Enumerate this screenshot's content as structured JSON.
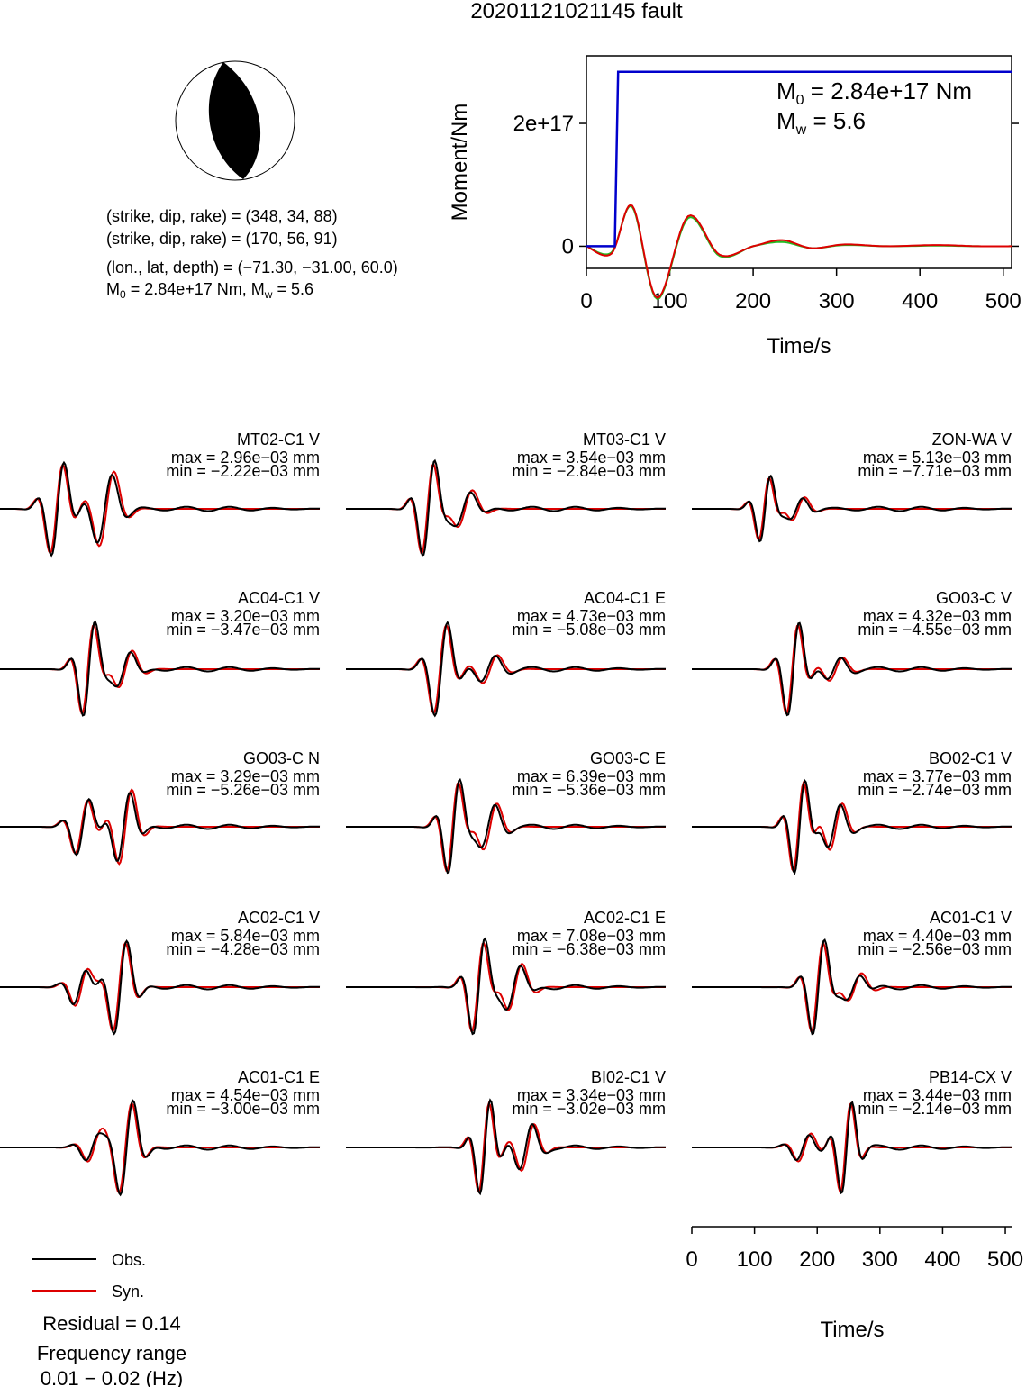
{
  "title": "20201121021145 fault",
  "mechanism": {
    "lines": [
      "(strike, dip, rake) = (348, 34, 88)",
      "(strike, dip, rake) = (170, 56, 91)",
      "(lon., lat, depth) = (−71.30, −31.00, 60.0)"
    ],
    "moment_line": {
      "m0": "M",
      "m0_sub": "0",
      "m0_rest": " = 2.84e+17 Nm, M",
      "mw_sub": "w",
      "mw_rest": " = 5.6"
    }
  },
  "stf": {
    "ylabel": "Moment/Nm",
    "xlabel": "Time/s",
    "yticks": [
      "2e+17",
      "0"
    ],
    "xticks": [
      "0",
      "100",
      "200",
      "300",
      "400",
      "500"
    ],
    "m0_text": {
      "a": "M",
      "sub": "0",
      "b": " = 2.84e+17 Nm"
    },
    "mw_text": {
      "a": "M",
      "sub": "w",
      "b": " = 5.6"
    },
    "colors": {
      "moment": "#0000cc",
      "red": "#dd0000",
      "green": "#22bb22"
    }
  },
  "waveforms": {
    "xlabel": "Time/s",
    "xticks": [
      "0",
      "100",
      "200",
      "300",
      "400",
      "500"
    ],
    "colors": {
      "obs": "#000000",
      "syn": "#dd0000"
    }
  },
  "legend": {
    "obs": "Obs.",
    "syn": "Syn.",
    "residual": "Residual = 0.14",
    "freq_label": "Frequency range",
    "freq_value": "0.01 − 0.02 (Hz)"
  },
  "chart_data": [
    {
      "type": "line",
      "title": "",
      "xlabel": "Time/s",
      "ylabel": "Moment/Nm",
      "xlim": [
        0,
        510
      ],
      "ylim": [
        -3.6e+16,
        3.1e+17
      ],
      "series": [
        {
          "color": "#0000cc",
          "x": [
            0,
            34,
            38,
            510
          ],
          "y": [
            0,
            0,
            2.84e+17,
            2.84e+17
          ]
        },
        {
          "color": "#dd0000",
          "x": [
            0,
            30,
            55,
            85,
            122,
            160,
            200,
            235,
            270,
            310,
            360,
            420,
            470,
            510
          ],
          "y": [
            0,
            -1.2e+16,
            6.6e+16,
            -8.4e+16,
            4.9e+16,
            -1.4e+16,
            0,
            1e+16,
            -3000000000000000.0,
            3000000000000000.0,
            0,
            2000000000000000.0,
            0,
            0
          ]
        },
        {
          "color": "#22bb22",
          "x": [
            0,
            30,
            55,
            85,
            122,
            160,
            200,
            235,
            270,
            310,
            360,
            420,
            470,
            510
          ],
          "y": [
            0,
            -1e+16,
            6.4e+16,
            -8.6e+16,
            4.6e+16,
            -1.6e+16,
            0,
            7000000000000000.0,
            -3000000000000000.0,
            2000000000000000.0,
            0,
            1000000000000000.0,
            0,
            0
          ]
        }
      ]
    },
    {
      "type": "line",
      "title": "waveforms",
      "xlabel": "Time/s",
      "xlim": [
        0,
        510
      ],
      "traces": [
        {
          "name": "MT02-C1 V",
          "max": "max = 2.96e−03 mm",
          "min": "min = −2.22e−03 mm",
          "pulses": [
            [
              90,
              1.0,
              12
            ],
            [
              170,
              0.8,
              14
            ]
          ]
        },
        {
          "name": "MT03-C1 V",
          "max": "max = 3.54e−03 mm",
          "min": "min = −2.84e−03 mm",
          "pulses": [
            [
              130,
              1.0,
              11
            ],
            [
              190,
              0.4,
              14
            ]
          ]
        },
        {
          "name": "ZON-WA V",
          "max": "max = 5.13e−03 mm",
          "min": "min = −7.71e−03 mm",
          "pulses": [
            [
              115,
              0.7,
              10
            ],
            [
              170,
              0.25,
              12
            ]
          ]
        },
        {
          "name": "AC04-C1 V",
          "max": "max = 3.20e−03 mm",
          "min": "min = −3.47e−03 mm",
          "pulses": [
            [
              140,
              1.0,
              11
            ],
            [
              200,
              0.4,
              13
            ]
          ]
        },
        {
          "name": "AC04-C1 E",
          "max": "max = 4.73e−03 mm",
          "min": "min = −5.08e−03 mm",
          "pulses": [
            [
              150,
              1.0,
              12
            ],
            [
              230,
              0.3,
              14
            ]
          ]
        },
        {
          "name": "GO03-C V",
          "max": "max = 4.32e−03 mm",
          "min": "min = −4.55e−03 mm",
          "pulses": [
            [
              160,
              1.0,
              11
            ],
            [
              230,
              0.25,
              13
            ]
          ]
        },
        {
          "name": "GO03-C N",
          "max": "max = 3.29e−03 mm",
          "min": "min = −5.26e−03 mm",
          "pulses": [
            [
              130,
              0.6,
              12
            ],
            [
              200,
              0.8,
              12
            ]
          ]
        },
        {
          "name": "GO03-C E",
          "max": "max = 6.39e−03 mm",
          "min": "min = −5.36e−03 mm",
          "pulses": [
            [
              170,
              1.0,
              11
            ],
            [
              230,
              0.5,
              13
            ]
          ]
        },
        {
          "name": "BO02-C1 V",
          "max": "max = 3.77e−03 mm",
          "min": "min = −2.74e−03 mm",
          "pulses": [
            [
              170,
              1.0,
              10
            ],
            [
              230,
              0.5,
              12
            ]
          ]
        },
        {
          "name": "AC02-C1 V",
          "max": "max = 5.84e−03 mm",
          "min": "min = −4.28e−03 mm",
          "pulses": [
            [
              190,
              1.0,
              12
            ],
            [
              130,
              0.4,
              12
            ]
          ]
        },
        {
          "name": "AC02-C1 E",
          "max": "max = 7.08e−03 mm",
          "min": "min = −6.38e−03 mm",
          "pulses": [
            [
              210,
              1.0,
              11
            ],
            [
              270,
              0.5,
              13
            ]
          ]
        },
        {
          "name": "AC01-C1 V",
          "max": "max = 4.40e−03 mm",
          "min": "min = −2.56e−03 mm",
          "pulses": [
            [
              200,
              1.0,
              11
            ],
            [
              260,
              0.3,
              13
            ]
          ]
        },
        {
          "name": "AC01-C1 E",
          "max": "max = 4.54e−03 mm",
          "min": "min = −3.00e−03 mm",
          "pulses": [
            [
              200,
              1.0,
              12
            ],
            [
              150,
              0.3,
              12
            ]
          ]
        },
        {
          "name": "BI02-C1 V",
          "max": "max = 3.34e−03 mm",
          "min": "min = −3.02e−03 mm",
          "pulses": [
            [
              220,
              1.0,
              10
            ],
            [
              290,
              0.5,
              12
            ]
          ]
        },
        {
          "name": "PB14-CX V",
          "max": "max = 3.44e−03 mm",
          "min": "min = −2.14e−03 mm",
          "pulses": [
            [
              245,
              1.0,
              10
            ],
            [
              180,
              0.3,
              12
            ]
          ]
        }
      ]
    }
  ]
}
